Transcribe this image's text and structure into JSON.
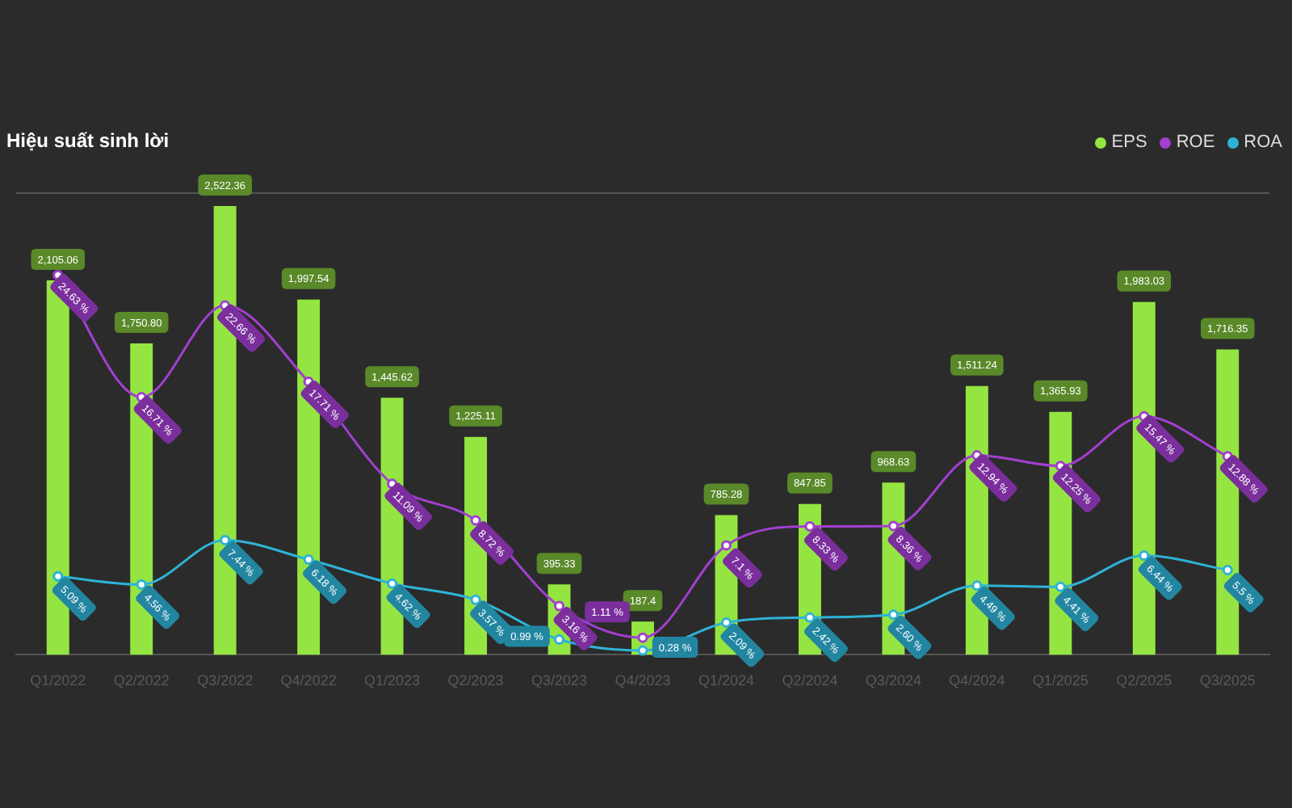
{
  "chart_data": {
    "type": "bar",
    "title": "Hiệu suất sinh lời",
    "legend": "top right",
    "marker": "circle",
    "tick_labels": "x",
    "ylim": [
      0,
      2600
    ],
    "y2lim": [
      0,
      30
    ],
    "categories": [
      "Q1/2022",
      "Q2/2022",
      "Q3/2022",
      "Q4/2022",
      "Q1/2023",
      "Q2/2023",
      "Q3/2023",
      "Q4/2023",
      "Q1/2024",
      "Q2/2024",
      "Q3/2024",
      "Q4/2024",
      "Q1/2025",
      "Q2/2025",
      "Q3/2025"
    ],
    "series": [
      {
        "name": "EPS",
        "color": "#95e542",
        "values": [
          2105.06,
          1750.8,
          2522.36,
          1997.54,
          1445.62,
          1225.11,
          395.33,
          187.4,
          785.28,
          847.85,
          968.63,
          1511.24,
          1365.93,
          1983.03,
          1716.35
        ],
        "value_labels": [
          "2,105.06",
          "1,750.80",
          "2,522.36",
          "1,997.54",
          "1,445.62",
          "1,225.11",
          "395.33",
          "187.4",
          "785.28",
          "847.85",
          "968.63",
          "1,511.24",
          "1,365.93",
          "1,983.03",
          "1,716.35"
        ]
      },
      {
        "name": "ROE",
        "type": "line",
        "axis": "y2",
        "color": "#a23fd0",
        "values": [
          24.63,
          16.71,
          22.66,
          17.71,
          11.09,
          8.72,
          3.16,
          1.11,
          7.1,
          8.33,
          8.36,
          12.94,
          12.25,
          15.47,
          12.88
        ],
        "value_labels": [
          "24.63 %",
          "16.71 %",
          "22.66 %",
          "17.71 %",
          "11.09 %",
          "8.72 %",
          "3.16 %",
          "1.11 %",
          "7.1 %",
          "8.33 %",
          "8.36 %",
          "12.94 %",
          "12.25 %",
          "15.47 %",
          "12.88 %"
        ]
      },
      {
        "name": "ROA",
        "type": "line",
        "axis": "y2",
        "color": "#2eb3d6",
        "values": [
          5.09,
          4.56,
          7.44,
          6.18,
          4.62,
          3.57,
          0.99,
          0.28,
          2.09,
          2.42,
          2.6,
          4.49,
          4.41,
          6.44,
          5.5
        ],
        "value_labels": [
          "5.09 %",
          "4.56 %",
          "7.44 %",
          "6.18 %",
          "4.62 %",
          "3.57 %",
          "0.99 %",
          "0.28 %",
          "2.09 %",
          "2.42 %",
          "2.60 %",
          "4.49 %",
          "4.41 %",
          "6.44 %",
          "5.5 %"
        ]
      }
    ]
  }
}
